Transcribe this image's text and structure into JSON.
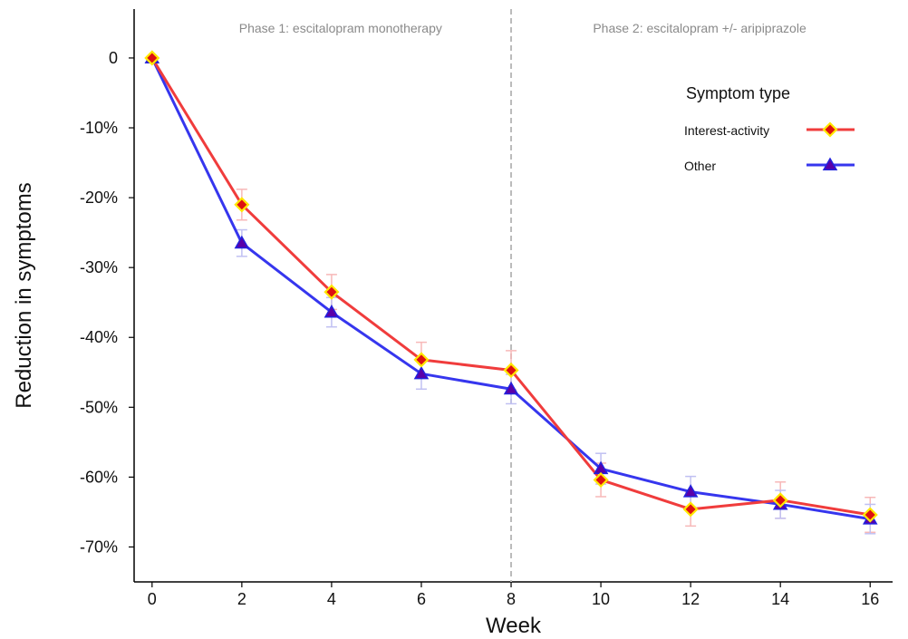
{
  "chart_data": {
    "type": "line",
    "xlabel": "Week",
    "ylabel": "Reduction in symptoms",
    "xlim": [
      -0.4,
      16.5
    ],
    "ylim": [
      -75,
      7
    ],
    "x_ticks": [
      0,
      2,
      4,
      6,
      8,
      10,
      12,
      14,
      16
    ],
    "x_tick_labels": [
      "0",
      "2",
      "4",
      "6",
      "8",
      "10",
      "12",
      "14",
      "16"
    ],
    "y_ticks": [
      0,
      -10,
      -20,
      -30,
      -40,
      -50,
      -60,
      -70
    ],
    "y_tick_labels": [
      "0",
      "-10%",
      "-20%",
      "-30%",
      "-40%",
      "-50%",
      "-60%",
      "-70%"
    ],
    "grid": false,
    "vline": {
      "x": 8,
      "style": "dashed",
      "color": "#bbbbbb"
    },
    "annotations": [
      {
        "text": "Phase 1: escitalopram monotherapy",
        "x": 4.2,
        "y": 4.3
      },
      {
        "text": "Phase 2: escitalopram +/- aripiprazole",
        "x": 12.2,
        "y": 4.3
      }
    ],
    "legend": {
      "title": "Symptom type",
      "position": "top-right"
    },
    "x": [
      0,
      2,
      4,
      6,
      8,
      10,
      12,
      14,
      16
    ],
    "series": [
      {
        "name": "Interest-activity",
        "color": "#f03c3c",
        "marker": "diamond",
        "marker_fill": "#dd1111",
        "marker_edge": "#ffe800",
        "values": [
          0,
          -21.0,
          -33.5,
          -43.2,
          -44.7,
          -60.4,
          -64.6,
          -63.3,
          -65.4
        ],
        "err": [
          0,
          2.2,
          2.5,
          2.5,
          2.8,
          2.4,
          2.4,
          2.6,
          2.5
        ],
        "err_color": "#f7b8b8"
      },
      {
        "name": "Other",
        "color": "#3636ee",
        "marker": "triangle",
        "marker_fill": "#5a00a8",
        "marker_edge": "#2222dd",
        "values": [
          0,
          -26.5,
          -36.4,
          -45.2,
          -47.4,
          -58.8,
          -62.1,
          -63.9,
          -66.0
        ],
        "err": [
          0,
          1.9,
          2.1,
          2.2,
          2.1,
          2.2,
          2.2,
          2.0,
          2.1
        ],
        "err_color": "#c0c0f2"
      }
    ]
  }
}
